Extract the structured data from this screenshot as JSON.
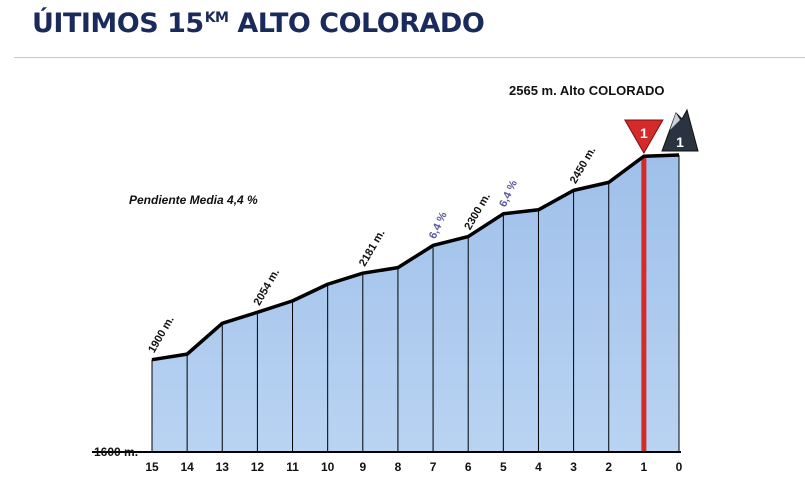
{
  "title": {
    "prefix": "ÚITIMOS  15",
    "unit": "KM",
    "suffix": " ALTO COLORADO"
  },
  "chart_data": {
    "type": "area",
    "x_km_to_finish": [
      15,
      14,
      13,
      12,
      11,
      10,
      9,
      8,
      7,
      6,
      5,
      4,
      3,
      2,
      1,
      0
    ],
    "y_altitude_m": [
      1900,
      1918,
      2018,
      2054,
      2091,
      2145,
      2181,
      2199,
      2271,
      2300,
      2374,
      2387,
      2450,
      2476,
      2561,
      2565
    ],
    "xticks": [
      "15",
      "14",
      "13",
      "12",
      "11",
      "10",
      "9",
      "8",
      "7",
      "6",
      "5",
      "4",
      "3",
      "2",
      "1",
      "0"
    ],
    "ylim": [
      1600,
      2565
    ],
    "y_base_label": "1600 m.",
    "summit_label": "2565 m. Alto COLORADO",
    "mean_gradient_label": "Pendiente Media 4,4 %",
    "point_labels": [
      {
        "x": 15,
        "y": 1900,
        "text": "1900 m."
      },
      {
        "x": 12,
        "y": 2054,
        "text": "2054 m."
      },
      {
        "x": 9,
        "y": 2181,
        "text": "2181 m."
      },
      {
        "x": 6,
        "y": 2300,
        "text": "2300 m."
      },
      {
        "x": 3,
        "y": 2450,
        "text": "2450 m."
      }
    ],
    "gradient_labels": [
      {
        "x": 7,
        "text": "6,4 %"
      },
      {
        "x": 5,
        "text": "6,4 %"
      }
    ],
    "markers": [
      {
        "x": 1,
        "type": "last-km-flag",
        "text": "1"
      },
      {
        "x": 0,
        "type": "mountain-category",
        "text": "1"
      }
    ],
    "colors": {
      "fill": "#aac8ee",
      "outline": "#000000",
      "last_km": "#d42a2a",
      "title": "#1a2a5a",
      "gradient_text": "#5a5aa0"
    }
  }
}
